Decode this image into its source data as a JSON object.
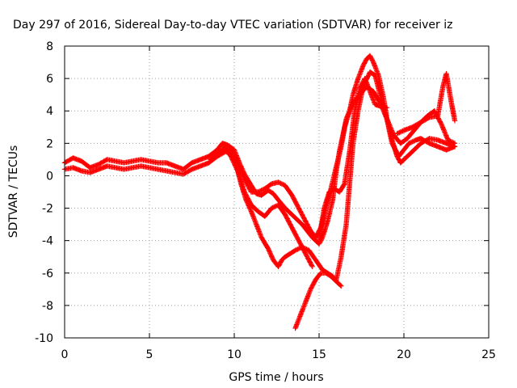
{
  "chart_data": {
    "type": "scatter",
    "title": "Day 297 of 2016, Sidereal Day-to-day VTEC variation (SDTVAR) for receiver iz",
    "xlabel": "GPS time / hours",
    "ylabel": "SDTVAR / TECUs",
    "xlim": [
      0,
      25
    ],
    "ylim": [
      -10,
      8
    ],
    "xticks": [
      "0",
      "5",
      "10",
      "15",
      "20",
      "25"
    ],
    "yticks": [
      "-10",
      "-8",
      "-6",
      "-4",
      "-2",
      "0",
      "2",
      "4",
      "6",
      "8"
    ],
    "xtick_values": [
      0,
      5,
      10,
      15,
      20,
      25
    ],
    "ytick_values": [
      -10,
      -8,
      -6,
      -4,
      -2,
      0,
      2,
      4,
      6,
      8
    ],
    "grid": true,
    "marker": "+",
    "color": "#ff0000",
    "series": [
      {
        "x": [
          0,
          0.5,
          1,
          1.5,
          2,
          2.5,
          3,
          3.5,
          4,
          4.5,
          5,
          5.5,
          6,
          6.5,
          7,
          7.5,
          8,
          8.5,
          9,
          9.3,
          9.6,
          10,
          10.3,
          10.6,
          11,
          11.3,
          11.6,
          12,
          12.3,
          12.6,
          13,
          13.3,
          13.6,
          14,
          14.3,
          14.6,
          15,
          15.2,
          15.5,
          15.8,
          16,
          16.2,
          16.5,
          16.8,
          17,
          17.3,
          17.6,
          17.8,
          18,
          18.2,
          18.5,
          18.8,
          19,
          19.3,
          19.6,
          19.8,
          20,
          20.3,
          20.6,
          21,
          21.5,
          22,
          22.5,
          23
        ],
        "y": [
          0.8,
          1.1,
          0.9,
          0.5,
          0.7,
          1.0,
          0.9,
          0.8,
          0.9,
          1.0,
          0.9,
          0.8,
          0.8,
          0.6,
          0.4,
          0.8,
          1.0,
          1.2,
          1.6,
          2.0,
          1.9,
          1.6,
          0.8,
          0.1,
          -0.6,
          -1.1,
          -1.2,
          -0.9,
          -1.1,
          -1.5,
          -2.0,
          -2.3,
          -2.6,
          -3.0,
          -3.4,
          -3.8,
          -4.2,
          -3.8,
          -2.8,
          -1.5,
          0.2,
          1.5,
          3.0,
          4.0,
          5.0,
          6.0,
          6.8,
          7.2,
          7.4,
          7.0,
          6.2,
          4.8,
          3.5,
          2.2,
          1.2,
          0.8,
          1.0,
          1.3,
          1.6,
          2.0,
          2.3,
          2.2,
          2.0,
          1.8
        ]
      },
      {
        "x": [
          0,
          0.5,
          1,
          1.5,
          2,
          2.5,
          3,
          3.5,
          4,
          4.5,
          5,
          5.5,
          6,
          6.5,
          7,
          7.5,
          8,
          8.5,
          9,
          9.5,
          9.8,
          10.1,
          10.4,
          10.7,
          11,
          11.3,
          11.6,
          12,
          12.3,
          12.6,
          12.8,
          13,
          13.3,
          13.6,
          14,
          14.4,
          14.8,
          15.2,
          15.5,
          15.8,
          16,
          16.3,
          16.6,
          17,
          17.3,
          17.6,
          18,
          18.3,
          18.6,
          19,
          19.3,
          19.7,
          20,
          20.3,
          20.7,
          21,
          21.5,
          22,
          22.5,
          23
        ],
        "y": [
          0.4,
          0.5,
          0.3,
          0.2,
          0.4,
          0.6,
          0.5,
          0.4,
          0.5,
          0.6,
          0.5,
          0.4,
          0.3,
          0.2,
          0.1,
          0.4,
          0.6,
          0.8,
          1.2,
          1.5,
          1.3,
          0.8,
          -0.5,
          -1.5,
          -2.2,
          -3.0,
          -3.8,
          -4.5,
          -5.2,
          -5.6,
          -5.2,
          -5.0,
          -4.8,
          -4.6,
          -4.4,
          -4.6,
          -5.2,
          -5.8,
          -6.0,
          -6.2,
          -6.5,
          -5.0,
          -3.0,
          2.0,
          4.0,
          5.5,
          6.4,
          6.2,
          5.0,
          3.5,
          2.0,
          1.2,
          1.6,
          2.0,
          2.2,
          2.3,
          2.0,
          1.8,
          1.6,
          1.8
        ]
      },
      {
        "x": [
          8.6,
          9,
          9.4,
          9.8,
          10.2,
          10.6,
          11,
          11.4,
          11.8,
          12.2,
          12.6,
          13,
          13.4,
          13.8,
          14.2,
          14.5,
          14.8,
          15.1,
          15.4,
          15.7,
          16,
          16.3,
          16.6,
          17,
          17.4,
          17.8,
          18.2,
          18.6,
          19,
          19.4,
          19.8,
          20.2,
          20.6,
          21,
          21.4,
          21.8,
          22.2,
          22.6,
          23
        ],
        "y": [
          1.0,
          1.3,
          1.7,
          1.6,
          0.8,
          -0.2,
          -1.0,
          -1.0,
          -0.8,
          -0.5,
          -0.4,
          -0.6,
          -1.2,
          -2.0,
          -2.8,
          -3.4,
          -3.8,
          -3.2,
          -2.0,
          -0.8,
          0.5,
          1.8,
          3.5,
          4.5,
          5.0,
          5.5,
          5.2,
          4.5,
          3.5,
          2.5,
          2.0,
          2.3,
          2.8,
          3.3,
          3.7,
          4.0,
          3.2,
          2.2,
          2.0
        ]
      },
      {
        "x": [
          13.6,
          13.9,
          14.2,
          14.5,
          14.8,
          15.1,
          15.4,
          15.7,
          16,
          16.3
        ],
        "y": [
          -9.4,
          -8.6,
          -7.8,
          -7.0,
          -6.4,
          -6.0,
          -6.0,
          -6.2,
          -6.5,
          -6.8
        ]
      },
      {
        "x": [
          15,
          15.3,
          15.6,
          15.9,
          16.2,
          16.5,
          16.8,
          17.1,
          17.4,
          17.7,
          18,
          18.3,
          18.6,
          19
        ],
        "y": [
          -4.0,
          -2.0,
          -1.0,
          -0.8,
          -1.0,
          -0.5,
          1.5,
          4.0,
          5.4,
          6.0,
          5.2,
          4.4,
          4.3,
          4.2
        ]
      },
      {
        "x": [
          19.6,
          20,
          20.5,
          21,
          21.5,
          22,
          22.3,
          22.5,
          22.8,
          23
        ],
        "y": [
          2.6,
          2.8,
          3.0,
          3.3,
          3.6,
          3.7,
          5.5,
          6.3,
          4.5,
          3.4
        ]
      },
      {
        "x": [
          9.4,
          9.8,
          10.2,
          10.6,
          11,
          11.4,
          11.8,
          12.2,
          12.6,
          13,
          13.4,
          13.8,
          14.2,
          14.6
        ],
        "y": [
          1.8,
          1.2,
          0.3,
          -1.0,
          -1.8,
          -2.2,
          -2.5,
          -2.0,
          -1.8,
          -2.4,
          -3.2,
          -4.0,
          -4.8,
          -5.6
        ]
      }
    ]
  }
}
